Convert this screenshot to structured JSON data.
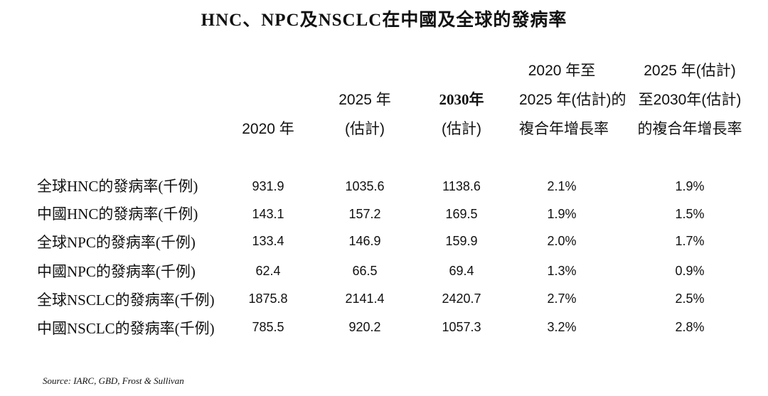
{
  "title": "HNC、NPC及NSCLC在中國及全球的發病率",
  "columns": [
    {
      "lines": [
        "2020 年"
      ]
    },
    {
      "lines": [
        "2025 年",
        "(估計)"
      ]
    },
    {
      "lines": [
        "2030年",
        "(估計)"
      ]
    },
    {
      "lines": [
        "2020 年至",
        "2025 年(估計)的",
        "複合年增長率"
      ]
    },
    {
      "lines": [
        "2025 年(估計)",
        "至2030年(估計)",
        "的複合年增長率"
      ]
    }
  ],
  "rows": [
    {
      "label": "全球HNC的發病率(千例)",
      "values": [
        "931.9",
        "1035.6",
        "1138.6",
        "2.1%",
        "1.9%"
      ]
    },
    {
      "label": "中國HNC的發病率(千例)",
      "values": [
        "143.1",
        "157.2",
        "169.5",
        "1.9%",
        "1.5%"
      ]
    },
    {
      "label": "全球NPC的發病率(千例)",
      "values": [
        "133.4",
        "146.9",
        "159.9",
        "2.0%",
        "1.7%"
      ]
    },
    {
      "label": "中國NPC的發病率(千例)",
      "values": [
        "62.4",
        "66.5",
        "69.4",
        "1.3%",
        "0.9%"
      ]
    },
    {
      "label": "全球NSCLC的發病率(千例)",
      "values": [
        "1875.8",
        "2141.4",
        "2420.7",
        "2.7%",
        "2.5%"
      ]
    },
    {
      "label": "中國NSCLC的發病率(千例)",
      "values": [
        "785.5",
        "920.2",
        "1057.3",
        "3.2%",
        "2.8%"
      ]
    }
  ],
  "source": "Source: IARC, GBD, Frost & Sullivan"
}
